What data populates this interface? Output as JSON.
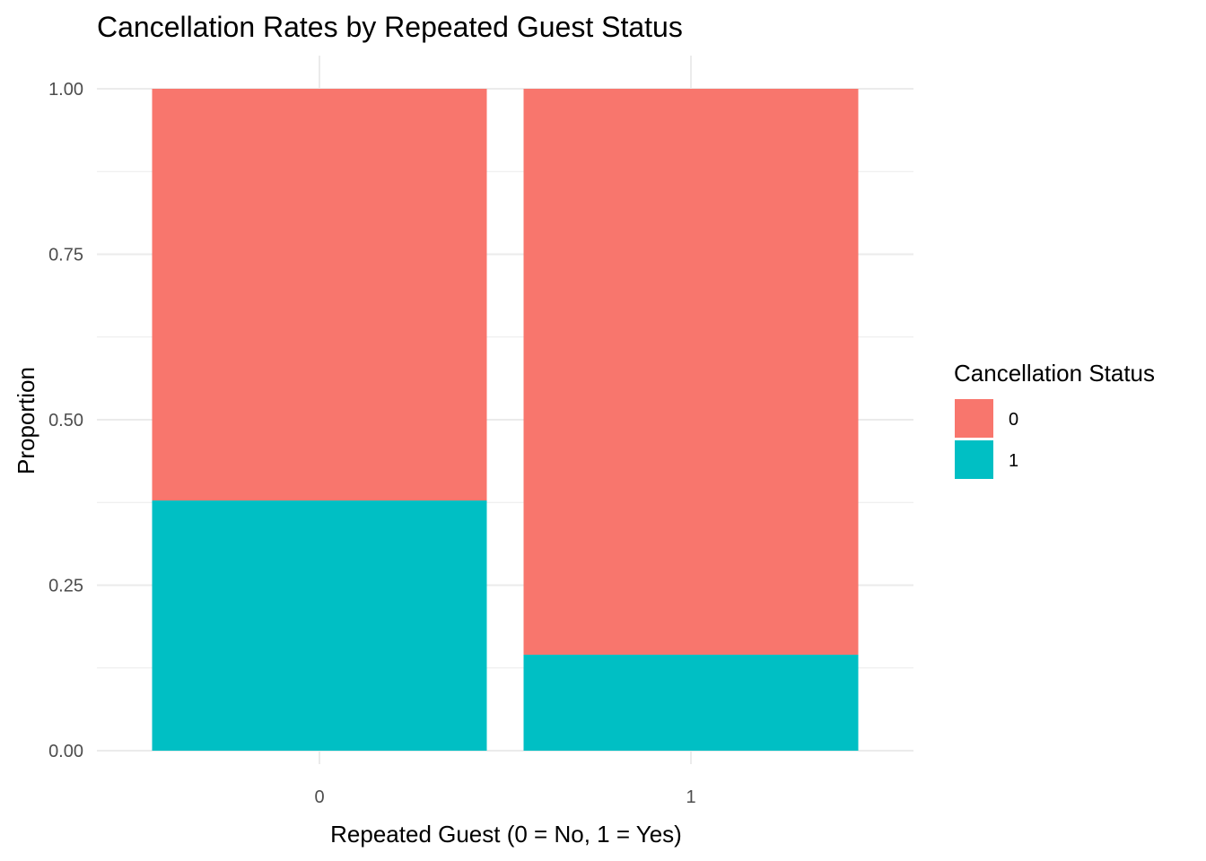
{
  "chart_data": {
    "type": "bar",
    "stacked": true,
    "title": "Cancellation Rates by Repeated Guest Status",
    "xlabel": "Repeated Guest (0 = No, 1 = Yes)",
    "ylabel": "Proportion",
    "categories": [
      "0",
      "1"
    ],
    "ylim": [
      0,
      1
    ],
    "yticks": [
      "0.00",
      "0.25",
      "0.50",
      "0.75",
      "1.00"
    ],
    "series": [
      {
        "name": "0",
        "color": "#F8766D",
        "values": [
          0.622,
          0.855
        ]
      },
      {
        "name": "1",
        "color": "#00BFC4",
        "values": [
          0.378,
          0.145
        ]
      }
    ],
    "legend": {
      "title": "Cancellation Status",
      "position": "right"
    },
    "grid": true
  }
}
